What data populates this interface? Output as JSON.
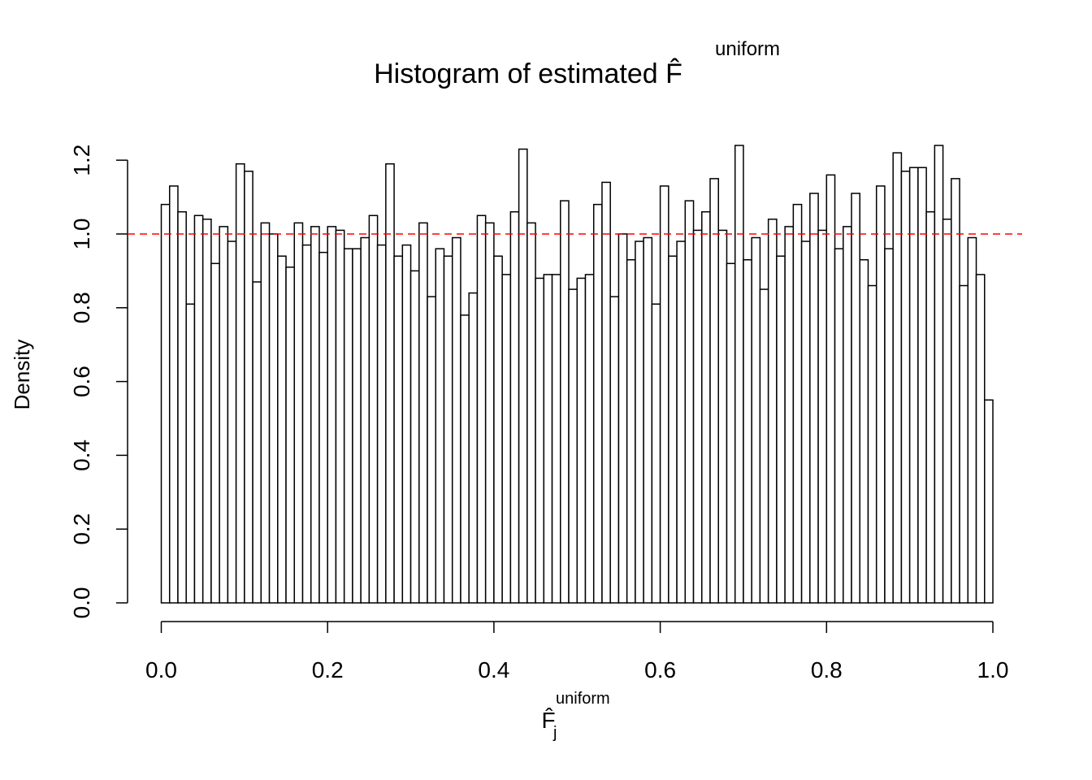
{
  "chart_data": {
    "type": "histogram",
    "title": "Histogram of estimated F̂",
    "title_superscript": "uniform",
    "xlabel": "F̂",
    "xlabel_subscript": "j",
    "xlabel_superscript": "uniform",
    "ylabel": "Density",
    "bins": [
      0,
      0.01,
      0.02,
      0.03,
      0.04,
      0.05,
      0.06,
      0.07,
      0.08,
      0.09,
      0.1,
      0.11,
      0.12,
      0.13,
      0.14,
      0.15,
      0.16,
      0.17,
      0.18,
      0.19,
      0.2,
      0.21,
      0.22,
      0.23,
      0.24,
      0.25,
      0.26,
      0.27,
      0.28,
      0.29,
      0.3,
      0.31,
      0.32,
      0.33,
      0.34,
      0.35,
      0.36,
      0.37,
      0.38,
      0.39,
      0.4,
      0.41,
      0.42,
      0.43,
      0.44,
      0.45,
      0.46,
      0.47,
      0.48,
      0.49,
      0.5,
      0.51,
      0.52,
      0.53,
      0.54,
      0.55,
      0.56,
      0.57,
      0.58,
      0.59,
      0.6,
      0.61,
      0.62,
      0.63,
      0.64,
      0.65,
      0.66,
      0.67,
      0.68,
      0.69,
      0.7,
      0.71,
      0.72,
      0.73,
      0.74,
      0.75,
      0.76,
      0.77,
      0.78,
      0.79,
      0.8,
      0.81,
      0.82,
      0.83,
      0.84,
      0.85,
      0.86,
      0.87,
      0.88,
      0.89,
      0.9,
      0.91,
      0.92,
      0.93,
      0.94,
      0.95,
      0.96,
      0.97,
      0.98,
      0.99,
      1
    ],
    "values": [
      1.08,
      1.13,
      1.06,
      0.81,
      1.05,
      1.04,
      0.92,
      1.02,
      0.98,
      1.19,
      1.17,
      0.87,
      1.03,
      1.0,
      0.94,
      0.91,
      1.03,
      0.97,
      1.02,
      0.95,
      1.02,
      1.01,
      0.96,
      0.96,
      0.99,
      1.05,
      0.97,
      1.19,
      0.94,
      0.97,
      0.9,
      1.03,
      0.83,
      0.96,
      0.94,
      0.99,
      0.78,
      0.84,
      1.05,
      1.03,
      0.94,
      0.89,
      1.06,
      1.23,
      1.03,
      0.88,
      0.89,
      0.89,
      1.09,
      0.85,
      0.88,
      0.89,
      1.08,
      1.14,
      0.83,
      1.0,
      0.93,
      0.98,
      0.99,
      0.81,
      1.13,
      0.94,
      0.98,
      1.09,
      1.01,
      1.06,
      1.15,
      1.01,
      0.92,
      1.24,
      0.93,
      0.99,
      0.85,
      1.04,
      0.94,
      1.02,
      1.08,
      0.98,
      1.11,
      1.01,
      1.16,
      0.96,
      1.02,
      1.11,
      0.93,
      0.86,
      1.13,
      0.96,
      1.22,
      1.17,
      1.18,
      1.18,
      1.06,
      1.24,
      1.04,
      1.15,
      0.86,
      0.99,
      0.89,
      0.55
    ],
    "color": "#ffffff",
    "edge_color": "#000000",
    "hline": 1,
    "hline_color": "#ff0000",
    "xlim": [
      0,
      1
    ],
    "ylim": [
      0,
      1.24
    ],
    "xticks": [
      {
        "value": 0,
        "label": "0.0"
      },
      0.2,
      0.4,
      0.6,
      0.8,
      {
        "value": 1,
        "label": "1.0"
      }
    ],
    "yticks": [
      {
        "value": 0,
        "label": "0.0"
      },
      0.2,
      0.4,
      0.6,
      0.8,
      {
        "value": 1,
        "label": "1.0"
      },
      1.2
    ]
  }
}
